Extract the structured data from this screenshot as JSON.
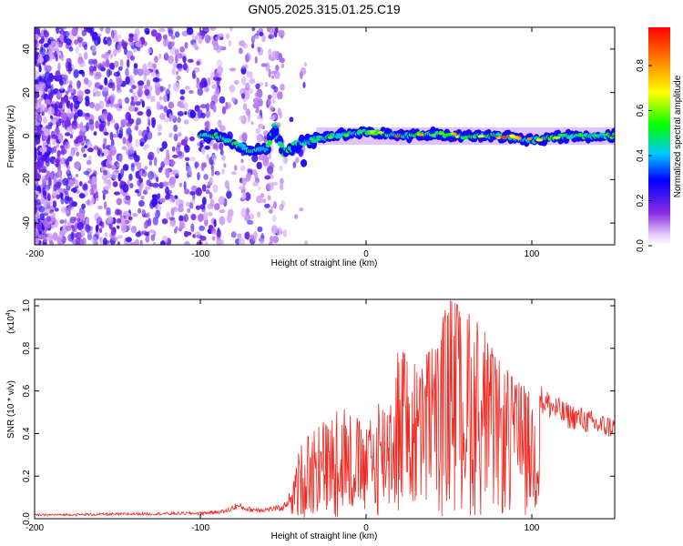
{
  "title": "GN05.2025.315.01.25.C19",
  "chart_data": [
    {
      "type": "heatmap",
      "title": "GN05.2025.315.01.25.C19",
      "xlabel": "Height of straight line (km)",
      "ylabel": "Frequency (Hz)",
      "xlim": [
        -200,
        150
      ],
      "ylim": [
        -50,
        50
      ],
      "xticks": [
        "-200",
        "-100",
        "0",
        "100"
      ],
      "yticks": [
        "-40",
        "-20",
        "0",
        "20",
        "40"
      ],
      "colorbar": {
        "label": "Normalized spectral amplitude",
        "range": [
          0.0,
          0.97
        ],
        "ticks": [
          "0.0",
          "0.2",
          "0.4",
          "0.6",
          "0.8"
        ]
      },
      "ridge": [
        {
          "x": -100,
          "f": 0,
          "amp": 0.5
        },
        {
          "x": -90,
          "f": 0,
          "amp": 0.6
        },
        {
          "x": -80,
          "f": -3,
          "amp": 0.55
        },
        {
          "x": -70,
          "f": -7,
          "amp": 0.5
        },
        {
          "x": -60,
          "f": -6,
          "amp": 0.55
        },
        {
          "x": -55,
          "f": 5,
          "amp": 0.5
        },
        {
          "x": -50,
          "f": -8,
          "amp": 0.45
        },
        {
          "x": -40,
          "f": -3,
          "amp": 0.45
        },
        {
          "x": -20,
          "f": 0,
          "amp": 0.6
        },
        {
          "x": 0,
          "f": 2,
          "amp": 0.7
        },
        {
          "x": 20,
          "f": 0,
          "amp": 0.95
        },
        {
          "x": 40,
          "f": 1,
          "amp": 0.8
        },
        {
          "x": 60,
          "f": 0,
          "amp": 0.85
        },
        {
          "x": 80,
          "f": 0,
          "amp": 0.95
        },
        {
          "x": 100,
          "f": -2,
          "amp": 0.97
        },
        {
          "x": 120,
          "f": 0,
          "amp": 0.6
        },
        {
          "x": 150,
          "f": 0,
          "amp": 0.55
        }
      ]
    },
    {
      "type": "line",
      "xlabel": "Height of straight line (km)",
      "ylabel": "SNR (10 * v/v)",
      "ylabel_scale": "(x10",
      "ylabel_scale_exp": "4",
      "ylabel_scale_close": ")",
      "xlim": [
        -200,
        150
      ],
      "ylim": [
        0,
        1.03
      ],
      "xticks": [
        "-200",
        "-100",
        "0",
        "100"
      ],
      "yticks": [
        "0.0",
        "0.2",
        "0.4",
        "0.6",
        "0.8",
        "1.0"
      ],
      "series": [
        {
          "name": "SNR",
          "color": "#ee2b24",
          "envelope_x": [
            -200,
            -150,
            -100,
            -85,
            -78,
            -70,
            -60,
            -50,
            -45,
            -40,
            -30,
            -20,
            -10,
            0,
            10,
            20,
            30,
            40,
            50,
            60,
            70,
            80,
            90,
            100,
            110,
            120,
            130,
            140,
            150
          ],
          "envelope_y": [
            0.02,
            0.025,
            0.03,
            0.04,
            0.07,
            0.05,
            0.05,
            0.06,
            0.13,
            0.35,
            0.42,
            0.5,
            0.52,
            0.42,
            0.58,
            0.8,
            0.72,
            0.8,
            1.03,
            0.98,
            0.9,
            0.75,
            0.65,
            0.6,
            0.55,
            0.5,
            0.48,
            0.45,
            0.44
          ]
        }
      ]
    }
  ]
}
